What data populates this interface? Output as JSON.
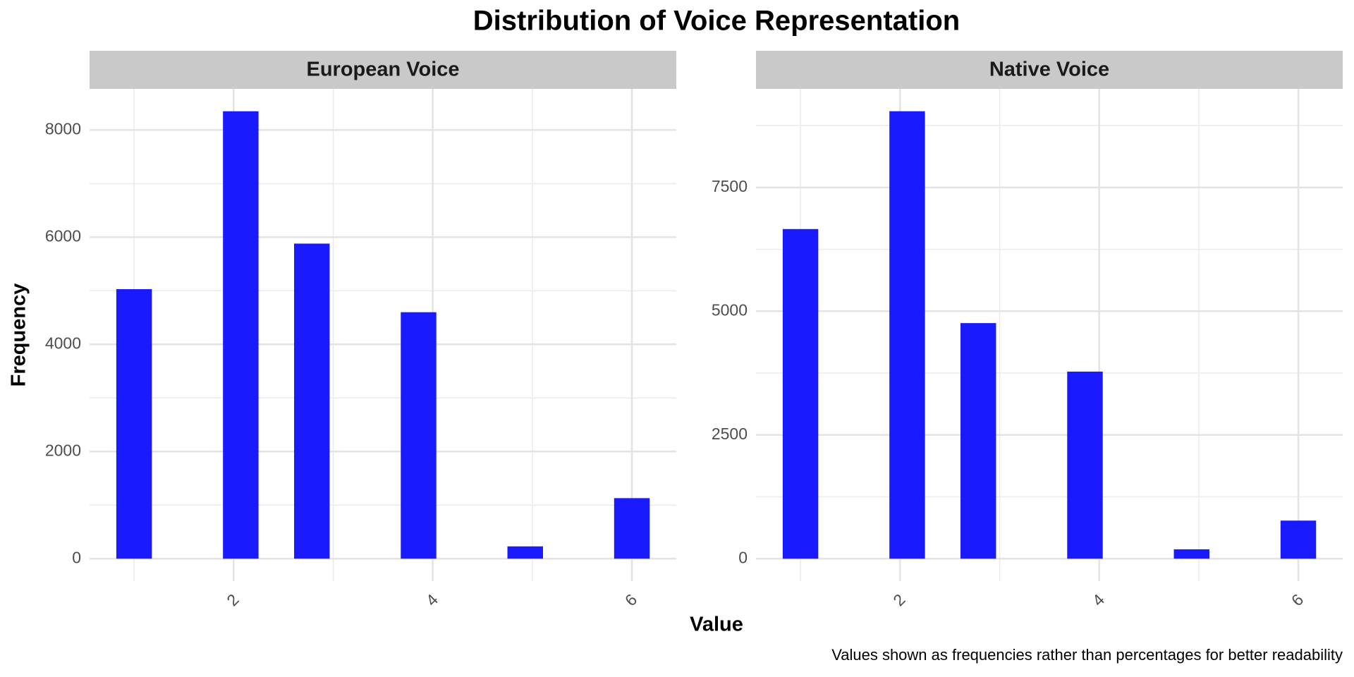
{
  "title": "Distribution of Voice Representation",
  "x_label": "Value",
  "y_label": "Frequency",
  "caption": "Values shown as frequencies rather than percentages for better readability",
  "chart_data": [
    {
      "type": "histogram",
      "title": "European Voice",
      "color": "#1a1aff",
      "bins": [
        0.8214,
        1.1786,
        1.5357,
        1.8929,
        2.25,
        2.6071,
        2.9643,
        3.3214,
        3.6786,
        4.0357,
        4.3929,
        4.75,
        5.1071,
        5.4643,
        5.8214,
        6.1786
      ],
      "values": [
        5030,
        0,
        0,
        8350,
        0,
        5880,
        0,
        0,
        4600,
        0,
        0,
        230,
        0,
        0,
        1130
      ],
      "xlim": [
        0.553,
        6.446
      ],
      "ylim": [
        -418,
        8768
      ],
      "xticks": [
        2,
        4,
        6
      ],
      "x_minor_ticks": [
        1,
        3,
        5
      ],
      "yticks": [
        0,
        2000,
        4000,
        6000,
        8000
      ],
      "y_minor_ticks": [
        1000,
        3000,
        5000,
        7000
      ],
      "grid": true
    },
    {
      "type": "histogram",
      "title": "Native Voice",
      "color": "#1a1aff",
      "bins": [
        0.8214,
        1.1786,
        1.5357,
        1.8929,
        2.25,
        2.6071,
        2.9643,
        3.3214,
        3.6786,
        4.0357,
        4.3929,
        4.75,
        5.1071,
        5.4643,
        5.8214,
        6.1786
      ],
      "values": [
        6660,
        0,
        0,
        9040,
        0,
        4760,
        0,
        0,
        3780,
        0,
        0,
        190,
        0,
        0,
        770
      ],
      "xlim": [
        0.553,
        6.446
      ],
      "ylim": [
        -452,
        9492
      ],
      "xticks": [
        2,
        4,
        6
      ],
      "x_minor_ticks": [
        1,
        3,
        5
      ],
      "yticks": [
        0,
        2500,
        5000,
        7500
      ],
      "y_minor_ticks": [
        1250,
        3750,
        6250,
        8750
      ],
      "grid": true
    }
  ]
}
